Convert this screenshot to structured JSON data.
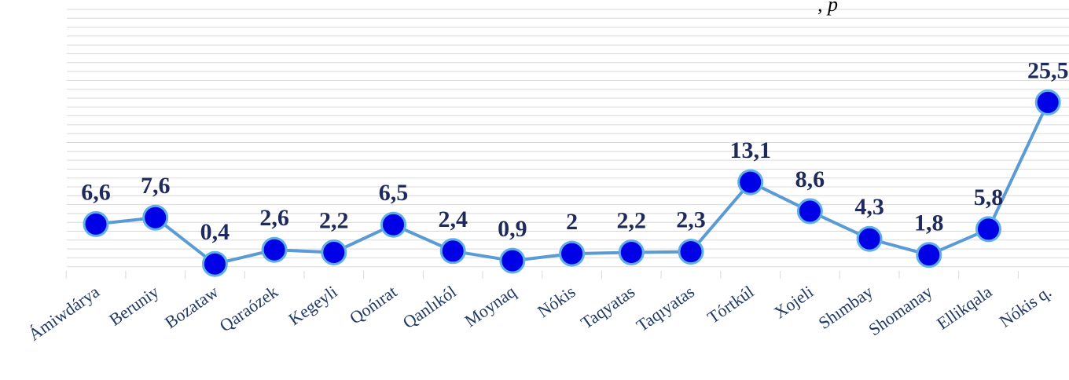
{
  "colors": {
    "line": "#5b9bd5",
    "marker_fill": "#0000e6",
    "marker_stroke": "#5fb0e6",
    "label_text": "#1f2a5c",
    "category_text": "#1f3864",
    "grid": "#d9d9d9"
  },
  "corner_text": ", p",
  "chart_data": {
    "type": "line",
    "title": "",
    "xlabel": "",
    "ylabel": "",
    "ylim": [
      0,
      30
    ],
    "grid": true,
    "legend": "none",
    "categories": [
      "Ámiwdárya",
      "Beruniy",
      "Bozataw",
      "Qaraózek",
      "Kegeyli",
      "Qońırat",
      "Qanlıkól",
      "Moynaq",
      "Nókis",
      "Taqyatas",
      "Taqıyatas",
      "Tórtkúl",
      "Xojeli",
      "Shımbay",
      "Shomanay",
      "Ellikqala",
      "Nókis q."
    ],
    "series": [
      {
        "values": [
          6.6,
          7.6,
          0.4,
          2.6,
          2.2,
          6.5,
          2.4,
          0.9,
          2,
          2.2,
          2.3,
          13.1,
          8.6,
          4.3,
          1.8,
          5.8,
          25.5
        ],
        "labels": [
          "6,6",
          "7,6",
          "0,4",
          "2,6",
          "2,2",
          "6,5",
          "2,4",
          "0,9",
          "2",
          "2,2",
          "2,3",
          "13,1",
          "8,6",
          "4,3",
          "1,8",
          "5,8",
          "25,5"
        ]
      }
    ]
  }
}
